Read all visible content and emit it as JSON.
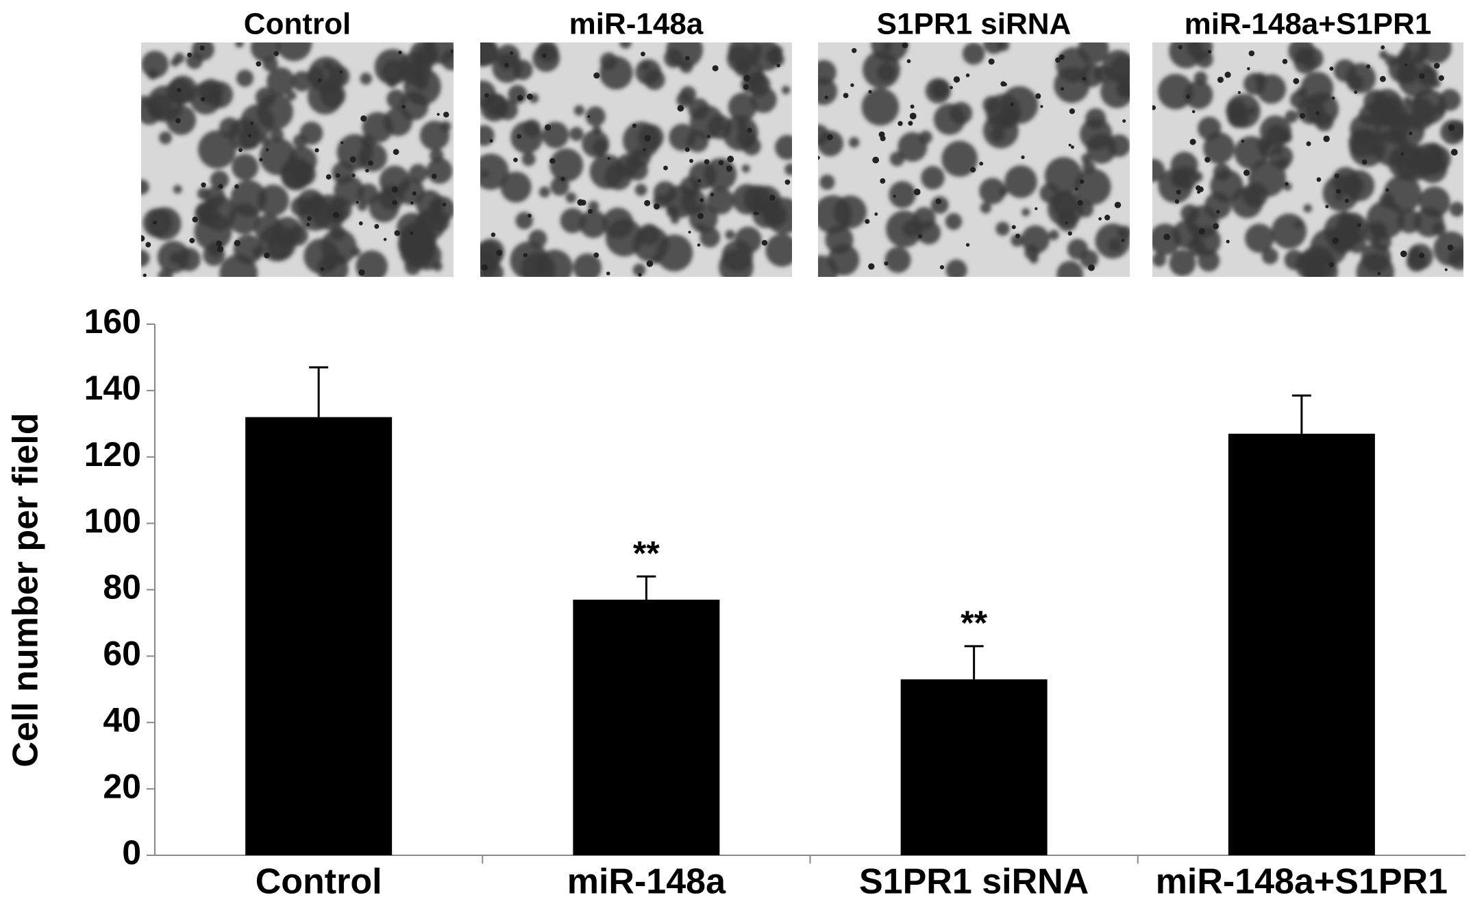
{
  "chart_data": {
    "type": "bar",
    "image_labels": [
      "Control",
      "miR-148a",
      "S1PR1 siRNA",
      "miR-148a+S1PR1"
    ],
    "y_label": "Cell number per field",
    "categories": [
      "Control",
      "miR-148a",
      "S1PR1 siRNA",
      "miR-148a+S1PR1"
    ],
    "values": [
      132,
      77,
      53,
      127
    ],
    "errors": [
      15,
      7,
      10,
      11.5
    ],
    "significance": [
      null,
      "**",
      "**",
      null
    ],
    "color": "#000000",
    "ylim": [
      0,
      160
    ],
    "yticks": [
      0,
      20,
      40,
      60,
      80,
      100,
      120,
      140,
      160
    ]
  }
}
